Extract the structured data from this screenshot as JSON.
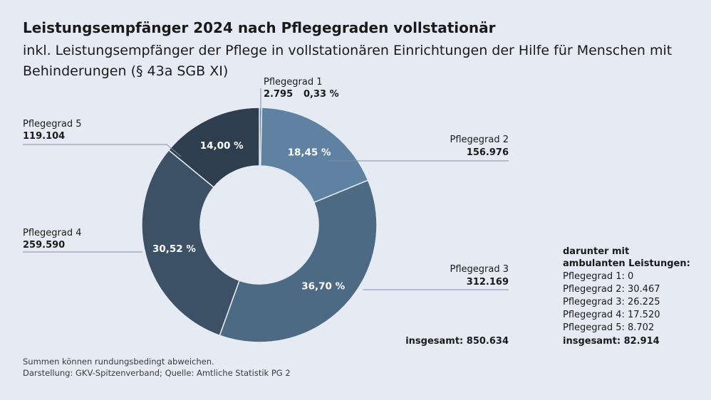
{
  "chart_data": {
    "type": "pie",
    "variant": "donut",
    "title": "Leistungsempfänger 2024 nach Pflegegraden vollstationär",
    "subtitle_line1": "inkl. Leistungsempfänger der Pflege in vollstationären Einrichtungen der Hilfe für Menschen mit",
    "subtitle_line2": "Behinderungen (§ 43a SGB XI)",
    "slices": [
      {
        "label": "Pflegegrad 1",
        "value": 2795,
        "value_label": "2.795",
        "percent": 0.33,
        "percent_label": "0,33 %",
        "color": "#5f82a3"
      },
      {
        "label": "Pflegegrad 2",
        "value": 156976,
        "value_label": "156.976",
        "percent": 18.45,
        "percent_label": "18,45 %",
        "color": "#5f82a3"
      },
      {
        "label": "Pflegegrad 3",
        "value": 312169,
        "value_label": "312.169",
        "percent": 36.7,
        "percent_label": "36,70 %",
        "color": "#4d6a84"
      },
      {
        "label": "Pflegegrad 4",
        "value": 259590,
        "value_label": "259.590",
        "percent": 30.52,
        "percent_label": "30,52 %",
        "color": "#3c5165"
      },
      {
        "label": "Pflegegrad 5",
        "value": 119104,
        "value_label": "119.104",
        "percent": 14.0,
        "percent_label": "14,00 %",
        "color": "#2f3e4e"
      }
    ],
    "total_label": "insgesamt: 850.634",
    "ambulant": {
      "heading_line1": "darunter mit",
      "heading_line2": "ambulanten Leistungen:",
      "items": [
        "Pflegegrad 1: 0",
        "Pflegegrad 2: 30.467",
        "Pflegegrad 3: 26.225",
        "Pflegegrad 4: 17.520",
        "Pflegegrad 5: 8.702"
      ],
      "total": "insgesamt: 82.914"
    },
    "footnote_line1": "Summen können rundungsbedingt abweichen.",
    "footnote_line2": "Darstellung: GKV-Spitzenverband; Quelle: Amtliche Statistik PG 2"
  }
}
